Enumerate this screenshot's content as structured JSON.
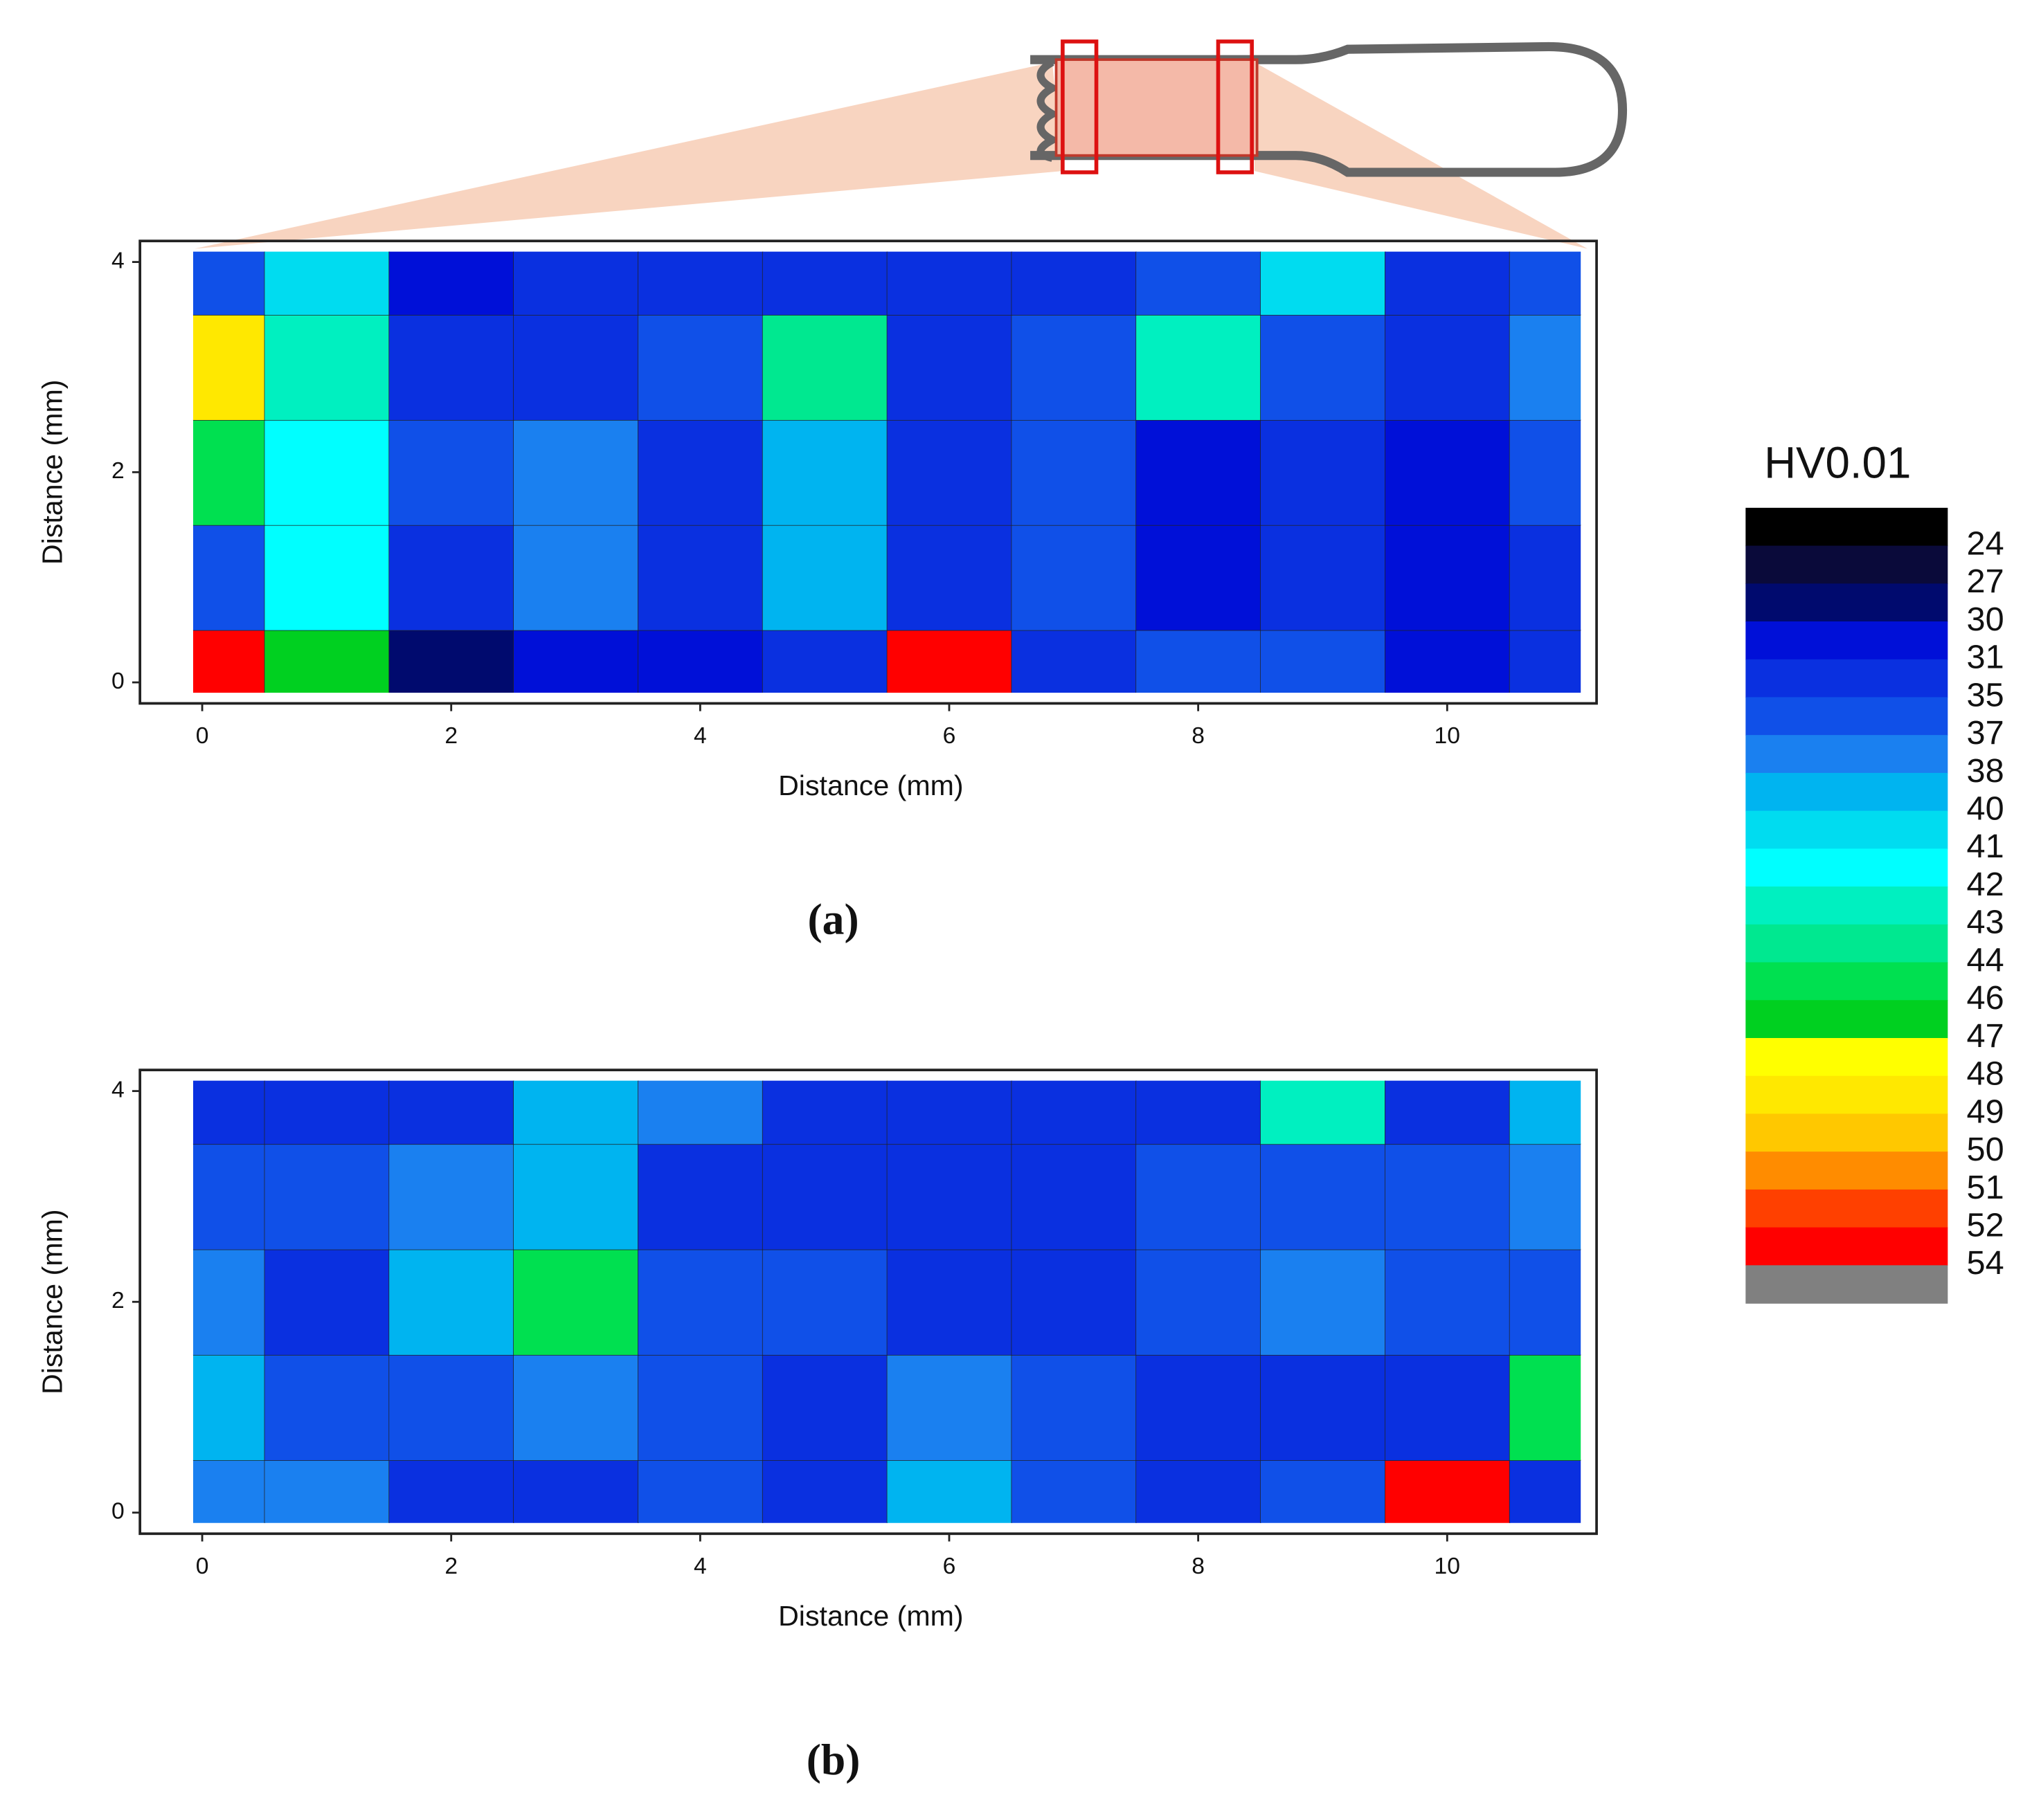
{
  "chart_data": [
    {
      "type": "heatmap",
      "panel_label": "(a)",
      "xlabel": "Distance (mm)",
      "ylabel": "Distance (mm)",
      "x": [
        0,
        1,
        2,
        3,
        4,
        5,
        6,
        7,
        8,
        9,
        10,
        11
      ],
      "y": [
        0,
        1,
        2,
        3,
        4
      ],
      "z": [
        [
          52,
          46,
          28,
          30,
          30,
          33,
          52,
          33,
          35,
          35,
          30,
          33
        ],
        [
          35,
          41,
          33,
          37,
          33,
          38,
          33,
          35,
          30,
          33,
          30,
          33
        ],
        [
          45,
          41,
          35,
          37,
          33,
          38,
          33,
          35,
          30,
          33,
          30,
          35
        ],
        [
          48,
          42,
          33,
          33,
          35,
          43,
          33,
          35,
          42,
          35,
          33,
          37
        ],
        [
          35,
          40,
          30,
          33,
          33,
          33,
          33,
          33,
          35,
          40,
          33,
          35
        ]
      ],
      "xlim": [
        -0.5,
        11.2
      ],
      "ylim": [
        -0.2,
        4.2
      ],
      "xticks": [
        0,
        2,
        4,
        6,
        8,
        10
      ],
      "yticks": [
        0,
        2,
        4
      ]
    },
    {
      "type": "heatmap",
      "panel_label": "(b)",
      "xlabel": "Distance (mm)",
      "ylabel": "Distance (mm)",
      "x": [
        0,
        1,
        2,
        3,
        4,
        5,
        6,
        7,
        8,
        9,
        10,
        11
      ],
      "y": [
        0,
        1,
        2,
        3,
        4
      ],
      "z": [
        [
          37,
          37,
          33,
          33,
          35,
          33,
          38,
          35,
          33,
          35,
          52,
          33
        ],
        [
          38,
          35,
          35,
          37,
          35,
          33,
          37,
          35,
          33,
          33,
          33,
          44
        ],
        [
          37,
          33,
          38,
          44,
          35,
          35,
          33,
          33,
          35,
          37,
          35,
          35
        ],
        [
          35,
          35,
          37,
          38,
          33,
          33,
          31,
          33,
          35,
          35,
          35,
          37
        ],
        [
          33,
          33,
          33,
          38,
          37,
          33,
          33,
          33,
          33,
          42,
          33,
          38
        ]
      ],
      "xlim": [
        -0.5,
        11.2
      ],
      "ylim": [
        -0.2,
        4.2
      ],
      "xticks": [
        0,
        2,
        4,
        6,
        8,
        10
      ],
      "yticks": [
        0,
        2,
        4
      ]
    }
  ],
  "colorbar": {
    "title": "HV0.01",
    "levels": [
      24,
      27,
      30,
      31,
      35,
      37,
      38,
      40,
      41,
      42,
      43,
      44,
      46,
      47,
      48,
      49,
      50,
      51,
      52,
      54
    ],
    "colors": [
      "#000000",
      "#0a0a3a",
      "#000a6e",
      "#0010d8",
      "#0a30e0",
      "#1050e8",
      "#1a80f0",
      "#00b4f0",
      "#00dcf0",
      "#00ffff",
      "#00f0c0",
      "#00e890",
      "#00e050",
      "#00d020",
      "#ffff00",
      "#ffe800",
      "#ffc800",
      "#ff8c00",
      "#ff4000",
      "#ff0000",
      "#808080"
    ]
  }
}
